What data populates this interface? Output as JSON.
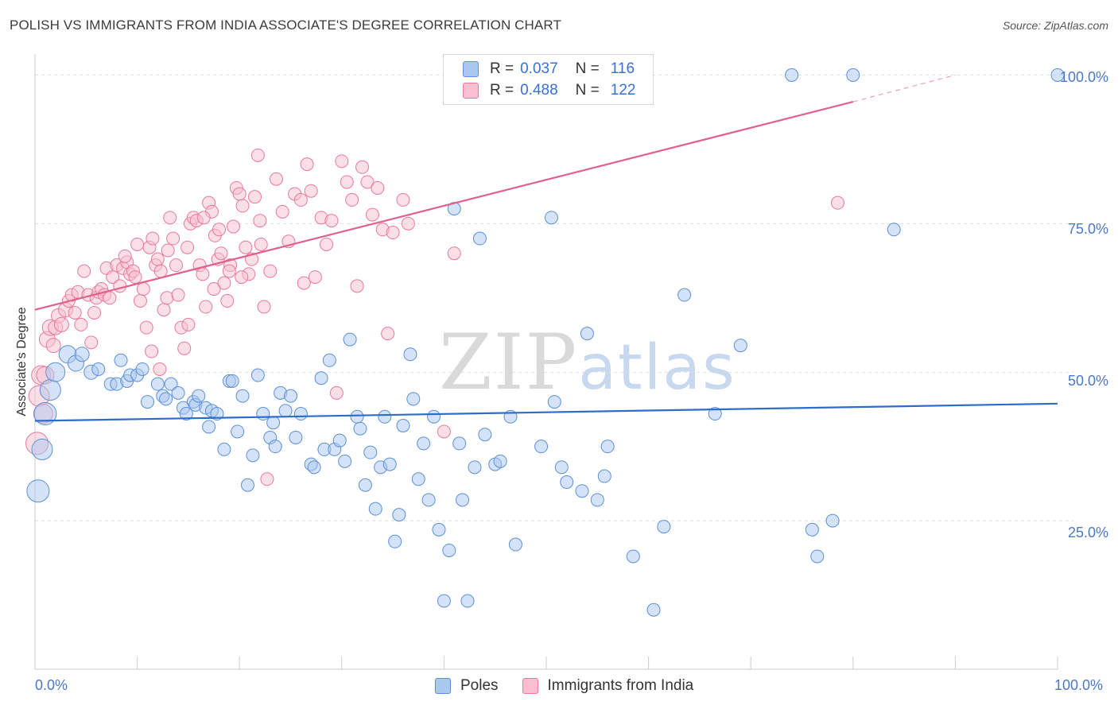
{
  "header": {
    "title": "POLISH VS IMMIGRANTS FROM INDIA ASSOCIATE'S DEGREE CORRELATION CHART",
    "source": "Source: ZipAtlas.com"
  },
  "watermark": {
    "zip": "ZIP",
    "atlas": "atlas"
  },
  "legend": {
    "rows": [
      {
        "r_label": "R =",
        "r_value": "0.037",
        "n_label": "N =",
        "n_value": "116"
      },
      {
        "r_label": "R =",
        "r_value": "0.488",
        "n_label": "N =",
        "n_value": "122"
      }
    ]
  },
  "bottom_legend": {
    "poles": "Poles",
    "india": "Immigrants from India"
  },
  "colors": {
    "poles_fill": "#aac8f0",
    "poles_stroke": "#5b8fd8",
    "poles_line": "#2d6cc8",
    "india_fill": "#f7bfd0",
    "india_stroke": "#e8799c",
    "india_line": "#e0628a",
    "tick_text": "#4a78c8",
    "grid": "#dddddd"
  },
  "chart_data": {
    "type": "scatter",
    "title": "POLISH VS IMMIGRANTS FROM INDIA ASSOCIATE'S DEGREE CORRELATION CHART",
    "xlabel": "",
    "ylabel": "Associate's Degree",
    "xlim": [
      0,
      100
    ],
    "ylim": [
      0,
      103
    ],
    "x_tick_labels": [
      "0.0%",
      "100.0%"
    ],
    "y_ticks": [
      {
        "value": 25,
        "label": "25.0%"
      },
      {
        "value": 50,
        "label": "50.0%"
      },
      {
        "value": 75,
        "label": "75.0%"
      },
      {
        "value": 100,
        "label": "100.0%"
      }
    ],
    "grid": true,
    "legend_position": "top-center",
    "series": [
      {
        "name": "Poles",
        "r": 0.037,
        "n": 116,
        "trend": {
          "x": [
            0,
            100
          ],
          "y": [
            41.8,
            44.7
          ]
        },
        "points": [
          [
            0.3,
            30,
            14
          ],
          [
            0.7,
            37,
            13
          ],
          [
            1.0,
            43,
            14
          ],
          [
            1.5,
            47,
            13
          ],
          [
            2.0,
            50,
            12
          ],
          [
            3.2,
            53,
            11
          ],
          [
            4.0,
            51.5,
            10
          ],
          [
            4.6,
            53,
            9
          ],
          [
            5.5,
            50,
            9
          ],
          [
            6.2,
            50.5,
            8
          ],
          [
            7.4,
            48,
            8
          ],
          [
            8.0,
            48,
            8
          ],
          [
            8.4,
            52,
            8
          ],
          [
            9.0,
            48.5,
            8
          ],
          [
            9.3,
            49.5,
            8
          ],
          [
            10.0,
            49.5,
            8
          ],
          [
            10.5,
            50.5,
            8
          ],
          [
            11.0,
            45,
            8
          ],
          [
            12.0,
            48,
            8
          ],
          [
            12.5,
            46,
            8
          ],
          [
            12.8,
            45.5,
            8
          ],
          [
            13.3,
            48,
            8
          ],
          [
            14.0,
            46.5,
            8
          ],
          [
            14.5,
            44,
            8
          ],
          [
            14.8,
            43,
            8
          ],
          [
            15.5,
            45,
            8
          ],
          [
            15.7,
            44.5,
            8
          ],
          [
            16.0,
            46,
            8
          ],
          [
            16.7,
            44,
            8
          ],
          [
            17.0,
            40.8,
            8
          ],
          [
            17.3,
            43.5,
            8
          ],
          [
            17.8,
            43,
            8
          ],
          [
            18.5,
            37,
            8
          ],
          [
            19.0,
            48.5,
            8
          ],
          [
            19.3,
            48.5,
            8
          ],
          [
            19.8,
            40,
            8
          ],
          [
            20.3,
            46,
            8
          ],
          [
            20.8,
            31,
            8
          ],
          [
            21.3,
            36,
            8
          ],
          [
            21.8,
            49.5,
            8
          ],
          [
            22.3,
            43,
            8
          ],
          [
            23.0,
            39,
            8
          ],
          [
            23.3,
            41.5,
            8
          ],
          [
            23.5,
            37.5,
            8
          ],
          [
            24.0,
            46.5,
            8
          ],
          [
            24.5,
            43.5,
            8
          ],
          [
            25.0,
            46,
            8
          ],
          [
            25.5,
            39,
            8
          ],
          [
            26.0,
            43,
            8
          ],
          [
            27.0,
            34.5,
            8
          ],
          [
            27.3,
            34,
            8
          ],
          [
            28.0,
            49,
            8
          ],
          [
            28.3,
            37,
            8
          ],
          [
            28.8,
            52,
            8
          ],
          [
            29.3,
            37,
            8
          ],
          [
            29.8,
            38.5,
            8
          ],
          [
            30.3,
            35,
            8
          ],
          [
            30.8,
            55.5,
            8
          ],
          [
            31.5,
            42.5,
            8
          ],
          [
            31.8,
            40.5,
            8
          ],
          [
            32.3,
            31,
            8
          ],
          [
            32.8,
            36.5,
            8
          ],
          [
            33.3,
            27,
            8
          ],
          [
            33.8,
            34,
            8
          ],
          [
            34.2,
            42.5,
            8
          ],
          [
            34.7,
            34.5,
            8
          ],
          [
            35.2,
            21.5,
            8
          ],
          [
            35.6,
            26,
            8
          ],
          [
            36.0,
            41,
            8
          ],
          [
            36.7,
            53,
            8
          ],
          [
            37.0,
            45.5,
            8
          ],
          [
            37.5,
            32,
            8
          ],
          [
            38.0,
            38,
            8
          ],
          [
            38.5,
            28.5,
            8
          ],
          [
            39.0,
            42.5,
            8
          ],
          [
            39.5,
            23.5,
            8
          ],
          [
            40.0,
            11.5,
            8
          ],
          [
            40.5,
            20,
            8
          ],
          [
            41.0,
            77.5,
            8
          ],
          [
            41.5,
            38,
            8
          ],
          [
            41.8,
            28.5,
            8
          ],
          [
            42.3,
            11.5,
            8
          ],
          [
            43.0,
            34,
            8
          ],
          [
            43.5,
            72.5,
            8
          ],
          [
            44.0,
            39.5,
            8
          ],
          [
            45.0,
            34.5,
            8
          ],
          [
            45.5,
            35,
            8
          ],
          [
            46.5,
            42.5,
            8
          ],
          [
            47.0,
            21,
            8
          ],
          [
            49.5,
            37.5,
            8
          ],
          [
            50.5,
            76,
            8
          ],
          [
            50.8,
            45,
            8
          ],
          [
            51.5,
            34,
            8
          ],
          [
            52.0,
            31.5,
            8
          ],
          [
            53.5,
            30,
            8
          ],
          [
            54.0,
            56.5,
            8
          ],
          [
            55.0,
            28.5,
            8
          ],
          [
            55.7,
            32.5,
            8
          ],
          [
            56.0,
            37.5,
            8
          ],
          [
            58.5,
            19,
            8
          ],
          [
            60.5,
            10,
            8
          ],
          [
            61.5,
            24,
            8
          ],
          [
            63.5,
            63,
            8
          ],
          [
            66.5,
            43,
            8
          ],
          [
            69.0,
            54.5,
            8
          ],
          [
            74.0,
            100,
            8
          ],
          [
            76.0,
            23.5,
            8
          ],
          [
            76.5,
            19,
            8
          ],
          [
            78.0,
            25,
            8
          ],
          [
            80.0,
            100,
            8
          ],
          [
            84.0,
            74,
            8
          ],
          [
            100,
            100,
            8
          ]
        ]
      },
      {
        "name": "Immigrants from India",
        "r": 0.488,
        "n": 122,
        "trend": {
          "x": [
            0,
            80
          ],
          "y": [
            60.5,
            95.5
          ]
        },
        "trend_dashed": {
          "x": [
            80,
            90
          ],
          "y": [
            95.5,
            100
          ]
        },
        "points": [
          [
            0.2,
            38,
            14
          ],
          [
            0.4,
            46,
            13
          ],
          [
            0.6,
            49.5,
            12
          ],
          [
            0.8,
            43,
            12
          ],
          [
            1.0,
            49.5,
            11
          ],
          [
            1.2,
            55.5,
            10
          ],
          [
            1.5,
            57.5,
            10
          ],
          [
            1.8,
            54.5,
            9
          ],
          [
            2.0,
            57.5,
            9
          ],
          [
            2.3,
            59.5,
            9
          ],
          [
            2.6,
            58,
            9
          ],
          [
            3.0,
            60.5,
            9
          ],
          [
            3.3,
            62,
            8
          ],
          [
            3.6,
            63,
            8
          ],
          [
            3.9,
            60,
            8
          ],
          [
            4.2,
            63.5,
            8
          ],
          [
            4.5,
            58,
            8
          ],
          [
            4.8,
            67,
            8
          ],
          [
            5.2,
            63,
            8
          ],
          [
            5.5,
            55,
            8
          ],
          [
            5.8,
            60,
            8
          ],
          [
            6.0,
            62.5,
            8
          ],
          [
            6.2,
            63.5,
            8
          ],
          [
            6.5,
            64,
            8
          ],
          [
            6.8,
            63,
            8
          ],
          [
            7.0,
            67.5,
            8
          ],
          [
            7.3,
            62.5,
            8
          ],
          [
            7.6,
            66,
            8
          ],
          [
            8.0,
            68,
            8
          ],
          [
            8.3,
            64.5,
            8
          ],
          [
            8.6,
            67.5,
            8
          ],
          [
            9.0,
            68.5,
            8
          ],
          [
            9.3,
            66.5,
            8
          ],
          [
            9.6,
            67,
            8
          ],
          [
            10.0,
            71.5,
            8
          ],
          [
            10.3,
            62,
            8
          ],
          [
            10.6,
            64,
            8
          ],
          [
            10.9,
            57.5,
            8
          ],
          [
            11.2,
            71,
            8
          ],
          [
            11.5,
            72.5,
            8
          ],
          [
            11.8,
            68,
            8
          ],
          [
            12.0,
            69,
            8
          ],
          [
            12.3,
            67,
            8
          ],
          [
            12.6,
            60.5,
            8
          ],
          [
            12.9,
            62.5,
            8
          ],
          [
            13.2,
            76,
            8
          ],
          [
            13.5,
            72.5,
            8
          ],
          [
            13.8,
            68,
            8
          ],
          [
            14.0,
            63,
            8
          ],
          [
            14.3,
            57.5,
            8
          ],
          [
            14.6,
            54,
            8
          ],
          [
            14.9,
            71,
            8
          ],
          [
            15.2,
            75,
            8
          ],
          [
            15.5,
            76,
            8
          ],
          [
            15.8,
            75.5,
            8
          ],
          [
            16.1,
            68,
            8
          ],
          [
            16.4,
            66.5,
            8
          ],
          [
            16.7,
            61,
            8
          ],
          [
            17.0,
            78.5,
            8
          ],
          [
            17.3,
            77,
            8
          ],
          [
            17.6,
            73,
            8
          ],
          [
            17.9,
            69,
            8
          ],
          [
            18.2,
            70,
            8
          ],
          [
            18.5,
            65,
            8
          ],
          [
            18.8,
            62,
            8
          ],
          [
            19.1,
            68,
            8
          ],
          [
            19.4,
            74.5,
            8
          ],
          [
            19.7,
            81,
            8
          ],
          [
            20.0,
            80,
            8
          ],
          [
            20.3,
            78,
            8
          ],
          [
            20.6,
            71,
            8
          ],
          [
            20.9,
            66.5,
            8
          ],
          [
            21.2,
            69,
            8
          ],
          [
            21.5,
            79.5,
            8
          ],
          [
            21.8,
            86.5,
            8
          ],
          [
            22.1,
            71.5,
            8
          ],
          [
            22.4,
            61,
            8
          ],
          [
            22.7,
            32,
            8
          ],
          [
            23.0,
            67,
            8
          ],
          [
            23.6,
            82.5,
            8
          ],
          [
            24.2,
            77,
            8
          ],
          [
            24.8,
            72,
            8
          ],
          [
            25.4,
            80,
            8
          ],
          [
            26.0,
            79,
            8
          ],
          [
            26.3,
            65,
            8
          ],
          [
            26.6,
            85,
            8
          ],
          [
            27.0,
            80.5,
            8
          ],
          [
            27.4,
            66,
            8
          ],
          [
            28.0,
            76,
            8
          ],
          [
            28.5,
            71.5,
            8
          ],
          [
            29.0,
            75.5,
            8
          ],
          [
            29.5,
            46.5,
            8
          ],
          [
            30.0,
            85.5,
            8
          ],
          [
            30.5,
            82,
            8
          ],
          [
            31.0,
            79,
            8
          ],
          [
            31.5,
            64.5,
            8
          ],
          [
            32.0,
            84.5,
            8
          ],
          [
            32.5,
            82,
            8
          ],
          [
            33.0,
            76.5,
            8
          ],
          [
            33.5,
            81,
            8
          ],
          [
            34.0,
            74,
            8
          ],
          [
            34.5,
            56.5,
            8
          ],
          [
            35.0,
            73.5,
            8
          ],
          [
            36.0,
            79,
            8
          ],
          [
            36.5,
            75,
            8
          ],
          [
            40.0,
            40,
            8
          ],
          [
            41.0,
            70,
            8
          ],
          [
            78.5,
            78.5,
            8
          ],
          [
            8.8,
            69.5,
            8
          ],
          [
            9.8,
            66,
            8
          ],
          [
            11.4,
            53.5,
            8
          ],
          [
            12.2,
            50.5,
            8
          ],
          [
            13.0,
            70.5,
            8
          ],
          [
            15.0,
            58,
            8
          ],
          [
            16.5,
            76,
            8
          ],
          [
            17.5,
            64,
            8
          ],
          [
            18.0,
            74,
            8
          ],
          [
            19.0,
            67,
            8
          ],
          [
            20.2,
            66,
            8
          ],
          [
            22.0,
            75.5,
            8
          ]
        ]
      }
    ]
  }
}
